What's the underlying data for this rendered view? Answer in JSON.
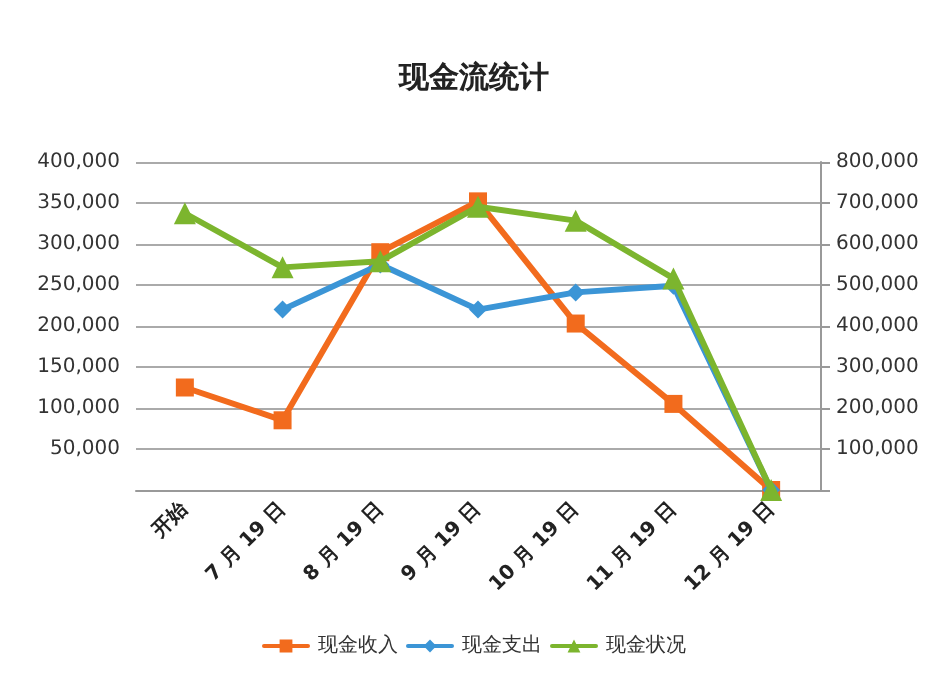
{
  "chart_data": {
    "type": "line",
    "title": "现金流统计",
    "categories": [
      "开始",
      "7 月 19 日",
      "8 月 19 日",
      "9 月 19 日",
      "10 月 19 日",
      "11 月 19 日",
      "12 月 19 日"
    ],
    "series": [
      {
        "name": "现金收入",
        "color": "#f26b1d",
        "marker": "square",
        "values": [
          125000,
          85000,
          290000,
          352000,
          203000,
          105000,
          0
        ]
      },
      {
        "name": "现金支出",
        "color": "#3b95d6",
        "marker": "diamond",
        "values": [
          null,
          220000,
          275000,
          220000,
          241000,
          249000,
          0
        ]
      },
      {
        "name": "现金状况",
        "color": "#7cb52e",
        "marker": "triangle",
        "axis": "y2",
        "values": [
          675000,
          543000,
          558000,
          691000,
          657000,
          516000,
          0
        ]
      }
    ],
    "ylim": [
      0,
      400000
    ],
    "yticks": [
      {
        "value": 0,
        "label": null
      },
      {
        "value": 50000,
        "label": "50,000"
      },
      {
        "value": 100000,
        "label": "100,000"
      },
      {
        "value": 150000,
        "label": "150,000"
      },
      {
        "value": 200000,
        "label": "200,000"
      },
      {
        "value": 250000,
        "label": "250,000"
      },
      {
        "value": 300000,
        "label": "300,000"
      },
      {
        "value": 350000,
        "label": "350,000"
      },
      {
        "value": 400000,
        "label": "400,000"
      }
    ],
    "y2lim": [
      0,
      800000
    ],
    "y2ticks": [
      {
        "value": 0,
        "label": null
      },
      {
        "value": 100000,
        "label": "100,000"
      },
      {
        "value": 200000,
        "label": "200,000"
      },
      {
        "value": 300000,
        "label": "300,000"
      },
      {
        "value": 400000,
        "label": "400,000"
      },
      {
        "value": 500000,
        "label": "500,000"
      },
      {
        "value": 600000,
        "label": "600,000"
      },
      {
        "value": 700000,
        "label": "700,000"
      },
      {
        "value": 800000,
        "label": "800,000"
      }
    ],
    "grid": "y",
    "legend": "bottom",
    "line_style": "solid"
  }
}
